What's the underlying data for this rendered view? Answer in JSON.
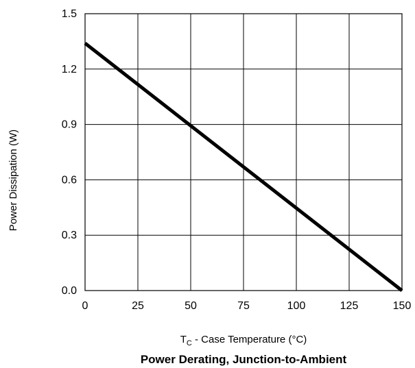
{
  "chart_data": {
    "type": "line",
    "title": "Power Derating, Junction-to-Ambient",
    "xlabel_main": "T",
    "xlabel_sub": "C",
    "xlabel_rest": " - Case Temperature (°C)",
    "ylabel": "Power Dissipation (W)",
    "x_ticks": [
      "0",
      "25",
      "50",
      "75",
      "100",
      "125",
      "150"
    ],
    "y_ticks": [
      "0.0",
      "0.3",
      "0.6",
      "0.9",
      "1.2",
      "1.5"
    ],
    "xlim": [
      0,
      150
    ],
    "ylim": [
      0,
      1.5
    ],
    "grid": true,
    "legend": "none",
    "series": [
      {
        "x": [
          0,
          150
        ],
        "y": [
          1.34,
          0.0
        ]
      }
    ],
    "line_color": "#000000"
  }
}
